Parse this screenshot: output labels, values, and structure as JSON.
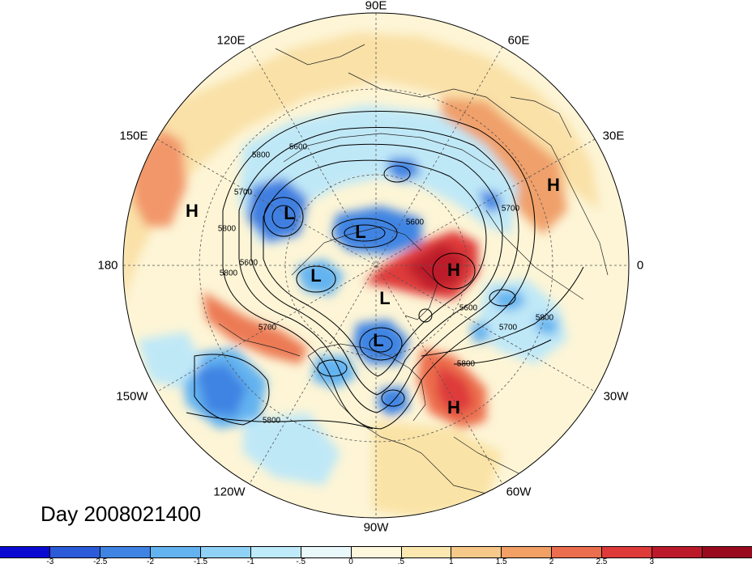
{
  "title": "Day 2008021400",
  "longitude_labels": {
    "lon_90E": "90E",
    "lon_120E": "120E",
    "lon_60E": "60E",
    "lon_150E": "150E",
    "lon_30E": "30E",
    "lon_180": "180",
    "lon_0": "0",
    "lon_150W": "150W",
    "lon_30W": "30W",
    "lon_120W": "120W",
    "lon_60W": "60W",
    "lon_90W": "90W"
  },
  "pressure_centers": [
    {
      "type": "H",
      "label": "H"
    },
    {
      "type": "H",
      "label": "H"
    },
    {
      "type": "H",
      "label": "H"
    },
    {
      "type": "H",
      "label": "H"
    },
    {
      "type": "L",
      "label": "L"
    },
    {
      "type": "L",
      "label": "L"
    },
    {
      "type": "L",
      "label": "L"
    },
    {
      "type": "L",
      "label": "L"
    },
    {
      "type": "L",
      "label": "L"
    }
  ],
  "contour_labels": [
    "5800",
    "5600",
    "5700",
    "5800",
    "5600",
    "5800",
    "5700",
    "5700",
    "5600",
    "5700",
    "5800",
    "5800",
    "5600",
    "5800"
  ],
  "colorbar": {
    "colors": [
      "#0a0ad2",
      "#2b5bd8",
      "#3f84e3",
      "#63b3f0",
      "#8fd2f5",
      "#bfeafa",
      "#e8f8fb",
      "#fdf8dd",
      "#fae8b0",
      "#f6c98a",
      "#f2a065",
      "#eb6e4e",
      "#de3a3a",
      "#bc1a2a",
      "#9a0a1e"
    ],
    "tick_labels": [
      "-3",
      "-2.5",
      "-2",
      "-1.5",
      "-1",
      "-.5",
      "0",
      ".5",
      "1",
      "1.5",
      "2",
      "2.5",
      "3"
    ]
  }
}
